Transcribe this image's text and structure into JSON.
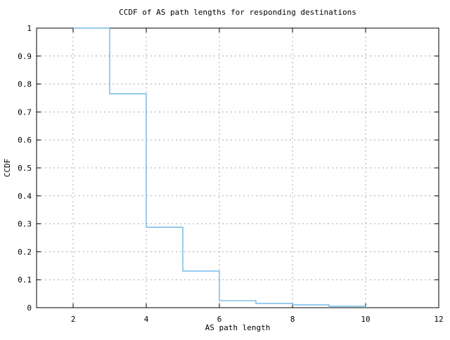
{
  "chart_data": {
    "type": "line",
    "style": "step-post",
    "title": "CCDF of AS path lengths for responding destinations",
    "xlabel": "AS path length",
    "ylabel": "CCDF",
    "xlim": [
      1,
      12
    ],
    "ylim": [
      0,
      1
    ],
    "xticks": [
      2,
      4,
      6,
      8,
      10,
      12
    ],
    "xtick_labels": [
      "2",
      "4",
      "6",
      "8",
      "10",
      "12"
    ],
    "yticks": [
      0,
      0.1,
      0.2,
      0.3,
      0.4,
      0.5,
      0.6,
      0.7,
      0.8,
      0.9,
      1
    ],
    "ytick_labels": [
      "0",
      "0.1",
      "0.2",
      "0.3",
      "0.4",
      "0.5",
      "0.6",
      "0.7",
      "0.8",
      "0.9",
      "1"
    ],
    "grid": true,
    "legend": "none",
    "line_color": "#57ace0",
    "grid_color": "#a8a8a8",
    "axis_color": "#000000",
    "background_color": "#ffffff",
    "series": [
      {
        "name": "ccdf",
        "x": [
          2,
          3,
          4,
          5,
          6,
          7,
          8,
          9,
          10
        ],
        "y": [
          1.0,
          0.765,
          0.288,
          0.131,
          0.025,
          0.015,
          0.01,
          0.005,
          0.0
        ]
      }
    ]
  }
}
